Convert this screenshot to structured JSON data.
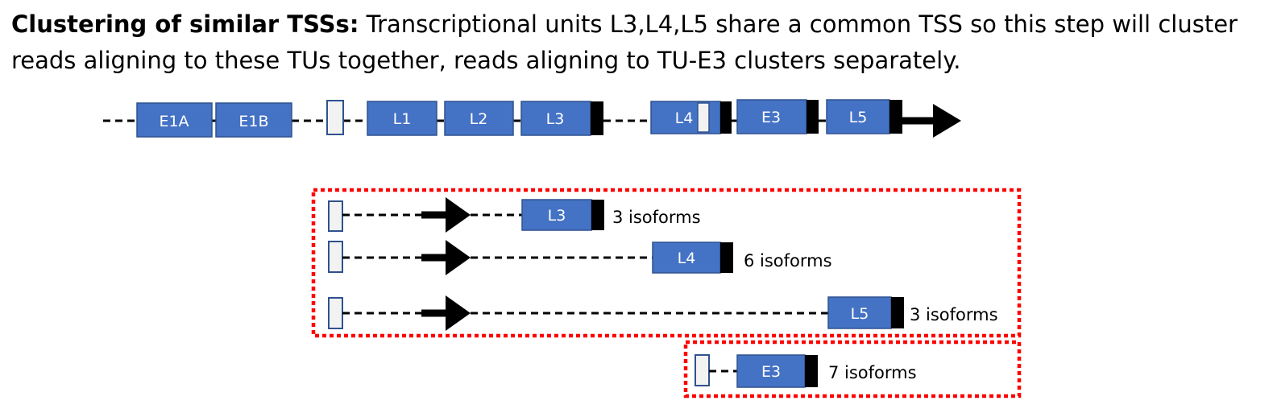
{
  "caption": {
    "bold": "Clustering of similar TSSs:",
    "text": " Transcriptional units L3,L4,L5 share a common TSS so this step will cluster reads aligning to these TUs together, reads aligning to TU-E3 clusters separately."
  },
  "gene_model": {
    "exons": [
      "E1A",
      "E1B",
      "L1",
      "L2",
      "L3",
      "L4",
      "E3",
      "L5"
    ]
  },
  "clusters": [
    {
      "rows": [
        {
          "exon": "L3",
          "isoforms": "3 isoforms"
        },
        {
          "exon": "L4",
          "isoforms": "6 isoforms"
        },
        {
          "exon": "L5",
          "isoforms": "3 isoforms"
        }
      ]
    },
    {
      "rows": [
        {
          "exon": "E3",
          "isoforms": "7 isoforms"
        }
      ]
    }
  ],
  "colors": {
    "exon_fill": "#4472C4",
    "exon_stroke": "#2F528F",
    "tss_fill": "#F2F2F2",
    "terminator": "#000000",
    "cluster_border": "#FF0000"
  }
}
